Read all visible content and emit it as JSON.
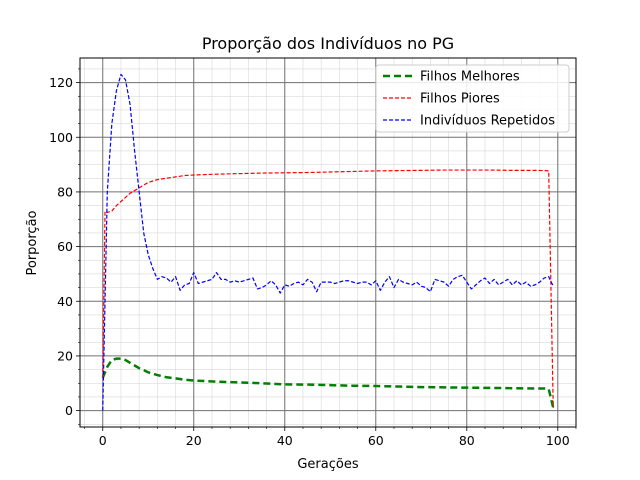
{
  "chart_data": {
    "type": "line",
    "title": "Proporção dos Indivíduos no PG",
    "xlabel": "Gerações",
    "ylabel": "Porporção",
    "xlim": [
      -5,
      104
    ],
    "ylim": [
      -6,
      129
    ],
    "xticks": [
      0,
      20,
      40,
      60,
      80,
      100
    ],
    "yticks": [
      0,
      20,
      40,
      60,
      80,
      100,
      120
    ],
    "x_tick_labels": [
      "0",
      "20",
      "40",
      "60",
      "80",
      "100"
    ],
    "y_tick_labels": [
      "0",
      "20",
      "40",
      "60",
      "80",
      "100",
      "120"
    ],
    "grid": {
      "major": true,
      "minor": true
    },
    "legend_position": "top-right",
    "series": [
      {
        "name": "Filhos Melhores",
        "color": "#008000",
        "dash": "7,4",
        "width": 2.5,
        "points": [
          [
            0,
            12
          ],
          [
            1,
            16
          ],
          [
            2,
            18.5
          ],
          [
            3,
            19
          ],
          [
            4,
            19
          ],
          [
            5,
            18.5
          ],
          [
            6,
            17.5
          ],
          [
            7,
            16.5
          ],
          [
            8,
            15.5
          ],
          [
            9,
            14.8
          ],
          [
            10,
            14
          ],
          [
            12,
            13
          ],
          [
            14,
            12.2
          ],
          [
            16,
            11.8
          ],
          [
            18,
            11.3
          ],
          [
            20,
            11
          ],
          [
            25,
            10.6
          ],
          [
            30,
            10.3
          ],
          [
            35,
            10
          ],
          [
            40,
            9.6
          ],
          [
            45,
            9.5
          ],
          [
            50,
            9.3
          ],
          [
            55,
            9.1
          ],
          [
            60,
            9
          ],
          [
            65,
            8.8
          ],
          [
            70,
            8.6
          ],
          [
            75,
            8.5
          ],
          [
            80,
            8.4
          ],
          [
            85,
            8.3
          ],
          [
            90,
            8.2
          ],
          [
            95,
            8.1
          ],
          [
            97,
            8.1
          ],
          [
            98,
            7.9
          ],
          [
            99,
            1
          ]
        ]
      },
      {
        "name": "Filhos Piores",
        "color": "#ff0000",
        "dash": "4,2",
        "width": 1.2,
        "points": [
          [
            0,
            12
          ],
          [
            0.5,
            73
          ],
          [
            1,
            72.5
          ],
          [
            2,
            73
          ],
          [
            3,
            75
          ],
          [
            4,
            76.5
          ],
          [
            5,
            78
          ],
          [
            6,
            79.5
          ],
          [
            7,
            80.5
          ],
          [
            8,
            81.5
          ],
          [
            9,
            82.5
          ],
          [
            10,
            83.5
          ],
          [
            11,
            84
          ],
          [
            12,
            84.5
          ],
          [
            14,
            85
          ],
          [
            16,
            85.5
          ],
          [
            18,
            86
          ],
          [
            20,
            86.2
          ],
          [
            25,
            86.5
          ],
          [
            30,
            86.7
          ],
          [
            35,
            86.9
          ],
          [
            40,
            87
          ],
          [
            45,
            87.1
          ],
          [
            50,
            87.3
          ],
          [
            55,
            87.5
          ],
          [
            60,
            87.7
          ],
          [
            65,
            87.8
          ],
          [
            70,
            87.9
          ],
          [
            75,
            88
          ],
          [
            80,
            88
          ],
          [
            85,
            88
          ],
          [
            90,
            87.9
          ],
          [
            95,
            87.9
          ],
          [
            97,
            87.8
          ],
          [
            98,
            87.7
          ],
          [
            99,
            1
          ]
        ]
      },
      {
        "name": "Indivíduos Repetidos",
        "color": "#0000ff",
        "dash": "4,2",
        "width": 1.2,
        "points": [
          [
            0,
            0
          ],
          [
            0.5,
            40
          ],
          [
            1,
            80
          ],
          [
            2,
            105
          ],
          [
            3,
            117
          ],
          [
            4,
            123
          ],
          [
            5,
            121
          ],
          [
            6,
            112
          ],
          [
            7,
            95
          ],
          [
            8,
            80
          ],
          [
            9,
            65
          ],
          [
            10,
            57
          ],
          [
            11,
            52
          ],
          [
            12,
            48
          ],
          [
            13,
            49
          ],
          [
            14,
            48.5
          ],
          [
            15,
            47
          ],
          [
            16,
            49
          ],
          [
            17,
            44
          ],
          [
            18,
            46
          ],
          [
            19,
            46.5
          ],
          [
            20,
            50.5
          ],
          [
            21,
            46.5
          ],
          [
            22,
            47
          ],
          [
            23,
            47.5
          ],
          [
            24,
            48
          ],
          [
            25,
            50.5
          ],
          [
            26,
            48
          ],
          [
            27,
            48
          ],
          [
            28,
            47
          ],
          [
            29,
            47.5
          ],
          [
            30,
            47
          ],
          [
            31,
            47.5
          ],
          [
            32,
            48
          ],
          [
            33,
            48.5
          ],
          [
            34,
            44.5
          ],
          [
            35,
            45
          ],
          [
            36,
            46
          ],
          [
            37,
            47.5
          ],
          [
            38,
            46
          ],
          [
            39,
            43
          ],
          [
            40,
            46
          ],
          [
            41,
            45.5
          ],
          [
            42,
            46.5
          ],
          [
            43,
            47
          ],
          [
            44,
            46
          ],
          [
            45,
            48
          ],
          [
            46,
            47
          ],
          [
            47,
            43.5
          ],
          [
            48,
            47
          ],
          [
            49,
            47
          ],
          [
            50,
            47
          ],
          [
            51,
            46.5
          ],
          [
            52,
            47
          ],
          [
            53,
            47.5
          ],
          [
            54,
            47.5
          ],
          [
            55,
            47
          ],
          [
            56,
            46.5
          ],
          [
            57,
            47
          ],
          [
            58,
            47
          ],
          [
            59,
            46
          ],
          [
            60,
            47.5
          ],
          [
            61,
            44
          ],
          [
            62,
            47
          ],
          [
            63,
            49
          ],
          [
            64,
            45
          ],
          [
            65,
            48
          ],
          [
            66,
            47
          ],
          [
            67,
            46.5
          ],
          [
            68,
            46
          ],
          [
            69,
            47
          ],
          [
            70,
            45.5
          ],
          [
            71,
            45
          ],
          [
            72,
            43.5
          ],
          [
            73,
            48
          ],
          [
            74,
            47.5
          ],
          [
            75,
            47
          ],
          [
            76,
            45.5
          ],
          [
            77,
            48
          ],
          [
            78,
            49
          ],
          [
            79,
            49.5
          ],
          [
            80,
            47
          ],
          [
            81,
            44.5
          ],
          [
            82,
            46
          ],
          [
            83,
            47.5
          ],
          [
            84,
            48.5
          ],
          [
            85,
            46.5
          ],
          [
            86,
            48
          ],
          [
            87,
            46
          ],
          [
            88,
            47
          ],
          [
            89,
            48
          ],
          [
            90,
            46
          ],
          [
            91,
            47.5
          ],
          [
            92,
            46
          ],
          [
            93,
            47
          ],
          [
            94,
            45.5
          ],
          [
            95,
            46
          ],
          [
            96,
            47
          ],
          [
            97,
            48.5
          ],
          [
            98,
            49
          ],
          [
            99,
            45.5
          ]
        ]
      }
    ]
  }
}
